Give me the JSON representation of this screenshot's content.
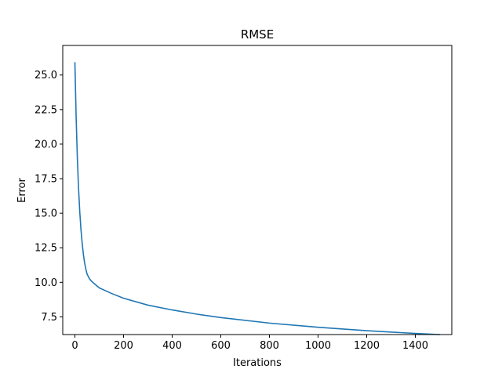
{
  "chart_data": {
    "type": "line",
    "title": "RMSE",
    "xlabel": "Iterations",
    "ylabel": "Error",
    "xlim": [
      -50,
      1550
    ],
    "ylim": [
      6.22,
      27.14
    ],
    "xticks": [
      0,
      200,
      400,
      600,
      800,
      1000,
      1200,
      1400
    ],
    "xtick_labels": [
      "0",
      "200",
      "400",
      "600",
      "800",
      "1000",
      "1200",
      "1400"
    ],
    "yticks": [
      7.5,
      10.0,
      12.5,
      15.0,
      17.5,
      20.0,
      22.5,
      25.0
    ],
    "ytick_labels": [
      "7.5",
      "10.0",
      "12.5",
      "15.0",
      "17.5",
      "20.0",
      "22.5",
      "25.0"
    ],
    "grid": false,
    "legend": "none",
    "line_color": "#1f77b4",
    "series": [
      {
        "x": [
          0,
          5,
          10,
          15,
          20,
          25,
          30,
          35,
          40,
          45,
          50,
          60,
          70,
          80,
          100,
          150,
          200,
          300,
          400,
          500,
          600,
          800,
          1000,
          1200,
          1400,
          1500
        ],
        "values": [
          25.9,
          22.0,
          19.0,
          16.8,
          15.1,
          13.8,
          12.8,
          12.0,
          11.4,
          10.95,
          10.6,
          10.25,
          10.05,
          9.9,
          9.6,
          9.2,
          8.85,
          8.35,
          8.0,
          7.7,
          7.45,
          7.05,
          6.75,
          6.5,
          6.3,
          6.22
        ]
      }
    ]
  }
}
